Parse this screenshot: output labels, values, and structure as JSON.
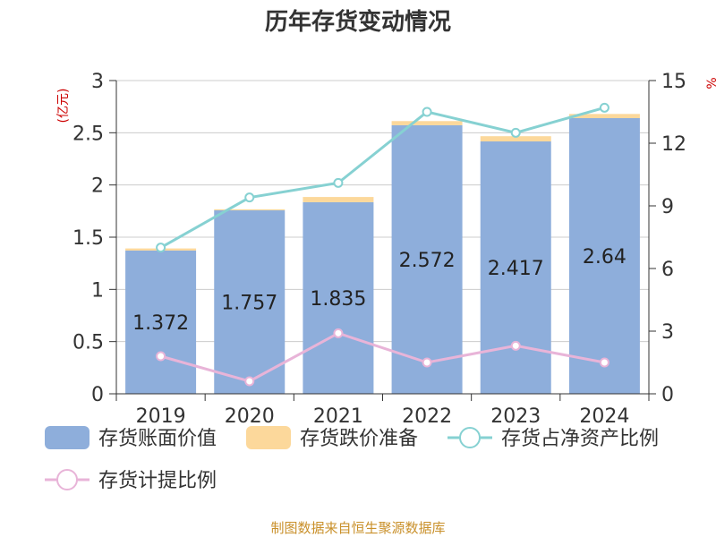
{
  "chart_data": {
    "type": "bar",
    "title": "历年存货变动情况",
    "left_unit": "(亿元)",
    "right_unit": "%",
    "categories": [
      "2019",
      "2020",
      "2021",
      "2022",
      "2023",
      "2024"
    ],
    "ylim_left": [
      0,
      3
    ],
    "yticks_left": [
      "0",
      "0.5",
      "1",
      "1.5",
      "2",
      "2.5",
      "3"
    ],
    "ylim_right": [
      0,
      15
    ],
    "yticks_right": [
      "0",
      "3",
      "6",
      "9",
      "12",
      "15"
    ],
    "grid": true,
    "legend_position": "bottom",
    "series": [
      {
        "name": "存货账面价值",
        "kind": "bar",
        "color": "#8eaedb",
        "values": [
          1.372,
          1.757,
          1.835,
          2.572,
          2.417,
          2.64
        ],
        "labels": [
          "1.372",
          "1.757",
          "1.835",
          "2.572",
          "2.417",
          "2.64"
        ]
      },
      {
        "name": "存货跌价准备",
        "kind": "bar-stacked",
        "color": "#fcd89b",
        "values": [
          0.02,
          0.01,
          0.05,
          0.04,
          0.05,
          0.04
        ]
      },
      {
        "name": "存货占净资产比例",
        "kind": "line",
        "axis": "right",
        "color": "#86d1d2",
        "values": [
          7.0,
          9.4,
          10.1,
          13.5,
          12.5,
          13.7
        ]
      },
      {
        "name": "存货计提比例",
        "kind": "line",
        "axis": "right",
        "color": "#e8b4d8",
        "values": [
          1.8,
          0.6,
          2.9,
          1.5,
          2.3,
          1.5
        ]
      }
    ],
    "source": "制图数据来自恒生聚源数据库"
  }
}
